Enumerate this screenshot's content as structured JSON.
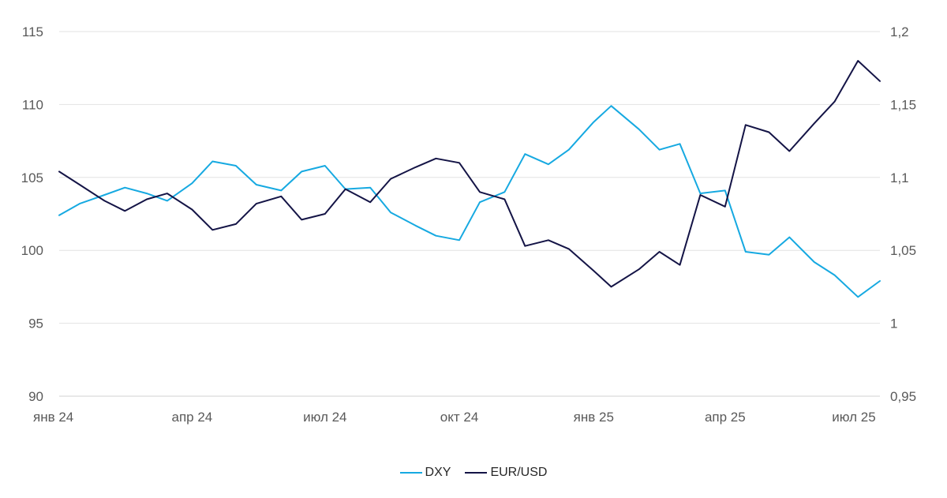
{
  "chart_data": {
    "type": "line",
    "title": "",
    "x_range": [
      "2024-01-01",
      "2025-07-16"
    ],
    "x_tick_labels": [
      "янв 24",
      "апр 24",
      "июл 24",
      "окт 24",
      "янв 25",
      "апр 25",
      "июл 25"
    ],
    "x_ticks": [
      "2024-01-01",
      "2024-04-01",
      "2024-07-01",
      "2024-10-01",
      "2025-01-01",
      "2025-04-01",
      "2025-07-01"
    ],
    "y_left": {
      "min": 90,
      "max": 115,
      "ticks": [
        "90",
        "95",
        "100",
        "105",
        "110",
        "115"
      ]
    },
    "y_right": {
      "min": 0.95,
      "max": 1.2,
      "ticks": [
        "0,95",
        "1",
        "1,05",
        "1,1",
        "1,15",
        "1,2"
      ]
    },
    "grid": true,
    "legend_position": "bottom-center",
    "series": [
      {
        "name": "DXY",
        "axis": "left",
        "color": "#16a9e1",
        "points": [
          [
            "2024-01-01",
            102.4
          ],
          [
            "2024-01-15",
            103.2
          ],
          [
            "2024-02-01",
            103.8
          ],
          [
            "2024-02-15",
            104.3
          ],
          [
            "2024-03-01",
            103.9
          ],
          [
            "2024-03-15",
            103.4
          ],
          [
            "2024-04-01",
            104.6
          ],
          [
            "2024-04-15",
            106.1
          ],
          [
            "2024-05-01",
            105.8
          ],
          [
            "2024-05-15",
            104.5
          ],
          [
            "2024-06-01",
            104.1
          ],
          [
            "2024-06-15",
            105.4
          ],
          [
            "2024-07-01",
            105.8
          ],
          [
            "2024-07-15",
            104.2
          ],
          [
            "2024-08-01",
            104.3
          ],
          [
            "2024-08-15",
            102.6
          ],
          [
            "2024-09-01",
            101.7
          ],
          [
            "2024-09-15",
            101.0
          ],
          [
            "2024-10-01",
            100.7
          ],
          [
            "2024-10-15",
            103.3
          ],
          [
            "2024-11-01",
            104.0
          ],
          [
            "2024-11-15",
            106.6
          ],
          [
            "2024-12-01",
            105.9
          ],
          [
            "2024-12-15",
            106.9
          ],
          [
            "2025-01-01",
            108.8
          ],
          [
            "2025-01-13",
            109.9
          ],
          [
            "2025-02-01",
            108.3
          ],
          [
            "2025-02-15",
            106.9
          ],
          [
            "2025-03-01",
            107.3
          ],
          [
            "2025-03-15",
            103.9
          ],
          [
            "2025-04-01",
            104.1
          ],
          [
            "2025-04-15",
            99.9
          ],
          [
            "2025-05-01",
            99.7
          ],
          [
            "2025-05-15",
            100.9
          ],
          [
            "2025-06-01",
            99.2
          ],
          [
            "2025-06-15",
            98.3
          ],
          [
            "2025-07-01",
            96.8
          ],
          [
            "2025-07-16",
            97.9
          ]
        ]
      },
      {
        "name": "EUR/USD",
        "axis": "right",
        "color": "#141446",
        "points": [
          [
            "2024-01-01",
            1.104
          ],
          [
            "2024-01-15",
            1.095
          ],
          [
            "2024-02-01",
            1.084
          ],
          [
            "2024-02-15",
            1.077
          ],
          [
            "2024-03-01",
            1.085
          ],
          [
            "2024-03-15",
            1.089
          ],
          [
            "2024-04-01",
            1.078
          ],
          [
            "2024-04-15",
            1.064
          ],
          [
            "2024-05-01",
            1.068
          ],
          [
            "2024-05-15",
            1.082
          ],
          [
            "2024-06-01",
            1.087
          ],
          [
            "2024-06-15",
            1.071
          ],
          [
            "2024-07-01",
            1.075
          ],
          [
            "2024-07-15",
            1.092
          ],
          [
            "2024-08-01",
            1.083
          ],
          [
            "2024-08-15",
            1.099
          ],
          [
            "2024-09-01",
            1.107
          ],
          [
            "2024-09-15",
            1.113
          ],
          [
            "2024-10-01",
            1.11
          ],
          [
            "2024-10-15",
            1.09
          ],
          [
            "2024-11-01",
            1.085
          ],
          [
            "2024-11-15",
            1.053
          ],
          [
            "2024-12-01",
            1.057
          ],
          [
            "2024-12-15",
            1.051
          ],
          [
            "2025-01-01",
            1.036
          ],
          [
            "2025-01-13",
            1.025
          ],
          [
            "2025-02-01",
            1.037
          ],
          [
            "2025-02-15",
            1.049
          ],
          [
            "2025-03-01",
            1.04
          ],
          [
            "2025-03-15",
            1.088
          ],
          [
            "2025-04-01",
            1.08
          ],
          [
            "2025-04-15",
            1.136
          ],
          [
            "2025-05-01",
            1.131
          ],
          [
            "2025-05-15",
            1.118
          ],
          [
            "2025-06-01",
            1.137
          ],
          [
            "2025-06-15",
            1.152
          ],
          [
            "2025-07-01",
            1.18
          ],
          [
            "2025-07-16",
            1.166
          ]
        ]
      }
    ]
  }
}
